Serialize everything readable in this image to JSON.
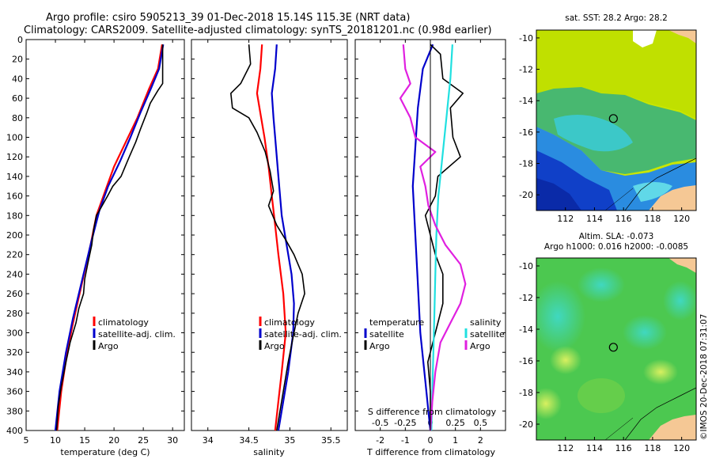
{
  "title": {
    "line1": "Argo profile: csiro 5905213_39 01-Dec-2018 15.14S 115.3E (NRT data)",
    "line2": "Climatology: CARS2009. Satellite-adjusted climatology: synTS_20181201.nc (0.98d earlier)"
  },
  "colors": {
    "red": "#ff0000",
    "blue": "#0000cc",
    "black": "#000000",
    "magenta": "#e020e0",
    "cyan": "#20e0e0"
  },
  "depth_ticks": [
    "0",
    "20",
    "40",
    "60",
    "80",
    "100",
    "120",
    "140",
    "160",
    "180",
    "200",
    "220",
    "240",
    "260",
    "280",
    "300",
    "320",
    "340",
    "360",
    "380",
    "400"
  ],
  "chart_data": [
    {
      "type": "line",
      "id": "temperature",
      "xlabel": "temperature (deg C)",
      "ylabel": "depth",
      "xlim": [
        5,
        32
      ],
      "ylim": [
        400,
        0
      ],
      "xticks": [
        "5",
        "10",
        "15",
        "20",
        "25",
        "30"
      ],
      "legend": [
        "climatology",
        "satellite-adj. clim.",
        "Argo"
      ],
      "series": [
        {
          "name": "climatology",
          "color": "red",
          "points": [
            [
              28.2,
              5
            ],
            [
              27.5,
              30
            ],
            [
              26,
              50
            ],
            [
              24,
              80
            ],
            [
              22,
              105
            ],
            [
              20,
              130
            ],
            [
              18.5,
              155
            ],
            [
              17,
              180
            ],
            [
              16,
              210
            ],
            [
              14.5,
              250
            ],
            [
              13,
              290
            ],
            [
              12,
              320
            ],
            [
              11,
              360
            ],
            [
              10.3,
              400
            ]
          ]
        },
        {
          "name": "satellite-adj. clim.",
          "color": "blue",
          "points": [
            [
              28.4,
              5
            ],
            [
              27.7,
              30
            ],
            [
              26.3,
              50
            ],
            [
              24.5,
              75
            ],
            [
              22.8,
              100
            ],
            [
              21,
              125
            ],
            [
              19,
              150
            ],
            [
              17.5,
              175
            ],
            [
              16.2,
              205
            ],
            [
              14.6,
              245
            ],
            [
              13,
              285
            ],
            [
              11.8,
              320
            ],
            [
              10.7,
              360
            ],
            [
              10,
              400
            ]
          ]
        },
        {
          "name": "Argo",
          "color": "black",
          "points": [
            [
              28.3,
              5
            ],
            [
              28.3,
              45
            ],
            [
              27.5,
              52
            ],
            [
              26.2,
              65
            ],
            [
              25.6,
              75
            ],
            [
              24.5,
              92
            ],
            [
              23.7,
              105
            ],
            [
              22.6,
              120
            ],
            [
              21.2,
              140
            ],
            [
              19.8,
              150
            ],
            [
              18.9,
              160
            ],
            [
              17.5,
              175
            ],
            [
              17,
              180
            ],
            [
              16.5,
              195
            ],
            [
              16.2,
              210
            ],
            [
              15.5,
              230
            ],
            [
              15,
              245
            ],
            [
              14.8,
              260
            ],
            [
              14,
              275
            ],
            [
              13.5,
              290
            ],
            [
              12.5,
              310
            ],
            [
              11.8,
              330
            ],
            [
              11,
              355
            ],
            [
              10.5,
              375
            ],
            [
              10.2,
              400
            ]
          ]
        }
      ]
    },
    {
      "type": "line",
      "id": "salinity",
      "xlabel": "salinity",
      "xlim": [
        33.8,
        35.7
      ],
      "ylim": [
        400,
        0
      ],
      "xticks": [
        "34",
        "34.5",
        "35",
        "35.5"
      ],
      "legend": [
        "climatology",
        "satellite-adj. clim.",
        "Argo"
      ],
      "series": [
        {
          "name": "climatology",
          "color": "red",
          "points": [
            [
              34.66,
              5
            ],
            [
              34.64,
              30
            ],
            [
              34.6,
              55
            ],
            [
              34.65,
              80
            ],
            [
              34.69,
              100
            ],
            [
              34.74,
              130
            ],
            [
              34.78,
              160
            ],
            [
              34.82,
              190
            ],
            [
              34.86,
              220
            ],
            [
              34.92,
              260
            ],
            [
              34.95,
              300
            ],
            [
              34.9,
              340
            ],
            [
              34.86,
              370
            ],
            [
              34.82,
              400
            ]
          ]
        },
        {
          "name": "satellite-adj. clim.",
          "color": "blue",
          "points": [
            [
              34.84,
              5
            ],
            [
              34.82,
              30
            ],
            [
              34.78,
              55
            ],
            [
              34.8,
              80
            ],
            [
              34.82,
              100
            ],
            [
              34.86,
              140
            ],
            [
              34.9,
              180
            ],
            [
              34.96,
              210
            ],
            [
              35.02,
              240
            ],
            [
              35.05,
              270
            ],
            [
              35.04,
              300
            ],
            [
              34.98,
              340
            ],
            [
              34.92,
              370
            ],
            [
              34.86,
              400
            ]
          ]
        },
        {
          "name": "Argo",
          "color": "black",
          "points": [
            [
              34.5,
              5
            ],
            [
              34.52,
              25
            ],
            [
              34.4,
              45
            ],
            [
              34.28,
              55
            ],
            [
              34.3,
              70
            ],
            [
              34.5,
              80
            ],
            [
              34.6,
              95
            ],
            [
              34.65,
              105
            ],
            [
              34.7,
              115
            ],
            [
              34.76,
              135
            ],
            [
              34.8,
              155
            ],
            [
              34.74,
              170
            ],
            [
              34.84,
              190
            ],
            [
              34.95,
              205
            ],
            [
              35.05,
              220
            ],
            [
              35.15,
              240
            ],
            [
              35.18,
              260
            ],
            [
              35.1,
              280
            ],
            [
              35.05,
              300
            ],
            [
              34.98,
              330
            ],
            [
              34.92,
              360
            ],
            [
              34.87,
              385
            ],
            [
              34.84,
              400
            ]
          ]
        }
      ]
    },
    {
      "type": "line",
      "id": "difference",
      "xlabel": "T difference from climatology",
      "x2label": "S difference from climatology",
      "xlim": [
        -3,
        3
      ],
      "x2lim": [
        -0.75,
        0.75
      ],
      "ylim": [
        400,
        0
      ],
      "xticks": [
        "-2",
        "-1",
        "0",
        "1",
        "2"
      ],
      "x2ticks": [
        "-0.5",
        "-0.25",
        "0",
        "0.25",
        "0.5"
      ],
      "legend_left": {
        "title": "temperature",
        "items": [
          "satellite",
          "Argo"
        ]
      },
      "legend_right": {
        "title": "salinity",
        "items": [
          "satellite",
          "Argo"
        ]
      },
      "series": [
        {
          "name": "temperature satellite",
          "color": "blue",
          "points": [
            [
              0.1,
              5
            ],
            [
              -0.3,
              30
            ],
            [
              -0.5,
              70
            ],
            [
              -0.6,
              110
            ],
            [
              -0.7,
              150
            ],
            [
              -0.6,
              200
            ],
            [
              -0.5,
              250
            ],
            [
              -0.4,
              300
            ],
            [
              -0.2,
              350
            ],
            [
              0,
              400
            ]
          ]
        },
        {
          "name": "temperature Argo",
          "color": "black",
          "points": [
            [
              0,
              5
            ],
            [
              0.4,
              15
            ],
            [
              0.5,
              40
            ],
            [
              1.3,
              55
            ],
            [
              0.8,
              70
            ],
            [
              0.9,
              100
            ],
            [
              1.2,
              120
            ],
            [
              0.3,
              140
            ],
            [
              0.2,
              160
            ],
            [
              -0.2,
              180
            ],
            [
              0,
              200
            ],
            [
              0.2,
              220
            ],
            [
              0.5,
              240
            ],
            [
              0.5,
              270
            ],
            [
              0.2,
              300
            ],
            [
              -0.1,
              330
            ],
            [
              0,
              360
            ],
            [
              0,
              400
            ]
          ]
        },
        {
          "name": "salinity satellite",
          "color": "cyan",
          "points": [
            [
              0.22,
              5
            ],
            [
              0.2,
              40
            ],
            [
              0.16,
              80
            ],
            [
              0.12,
              120
            ],
            [
              0.08,
              160
            ],
            [
              0.06,
              200
            ],
            [
              0.05,
              240
            ],
            [
              0.04,
              280
            ],
            [
              0.03,
              320
            ],
            [
              0.02,
              360
            ],
            [
              0.01,
              400
            ]
          ]
        },
        {
          "name": "salinity Argo",
          "color": "magenta",
          "points": [
            [
              -0.27,
              5
            ],
            [
              -0.25,
              30
            ],
            [
              -0.2,
              45
            ],
            [
              -0.3,
              60
            ],
            [
              -0.2,
              80
            ],
            [
              -0.15,
              100
            ],
            [
              0.05,
              115
            ],
            [
              -0.1,
              130
            ],
            [
              -0.05,
              150
            ],
            [
              -0.02,
              170
            ],
            [
              0.05,
              190
            ],
            [
              0.15,
              210
            ],
            [
              0.3,
              230
            ],
            [
              0.35,
              250
            ],
            [
              0.3,
              270
            ],
            [
              0.2,
              290
            ],
            [
              0.1,
              310
            ],
            [
              0.05,
              340
            ],
            [
              0.02,
              370
            ],
            [
              0,
              400
            ]
          ]
        }
      ]
    },
    {
      "type": "heatmap",
      "id": "sst_map",
      "title": "sat. SST: 28.2 Argo: 28.2",
      "xticks": [
        "112",
        "114",
        "116",
        "118",
        "120"
      ],
      "yticks": [
        "-10",
        "-12",
        "-14",
        "-16",
        "-18",
        "-20"
      ],
      "xlim": [
        110,
        121
      ],
      "ylim": [
        -21,
        -9.5
      ],
      "marker": {
        "lon": 115.3,
        "lat": -15.14
      }
    },
    {
      "type": "heatmap",
      "id": "sla_map",
      "title_line1": "Altim. SLA: -0.073",
      "title_line2": "Argo h1000: 0.016 h2000: -0.0085",
      "xticks": [
        "112",
        "114",
        "116",
        "118",
        "120"
      ],
      "yticks": [
        "-10",
        "-12",
        "-14",
        "-16",
        "-18",
        "-20"
      ],
      "xlim": [
        110,
        121
      ],
      "ylim": [
        -21,
        -9.5
      ],
      "marker": {
        "lon": 115.3,
        "lat": -15.14
      }
    }
  ],
  "watermark": "©IMOS 20-Dec-2018 07:31:07"
}
